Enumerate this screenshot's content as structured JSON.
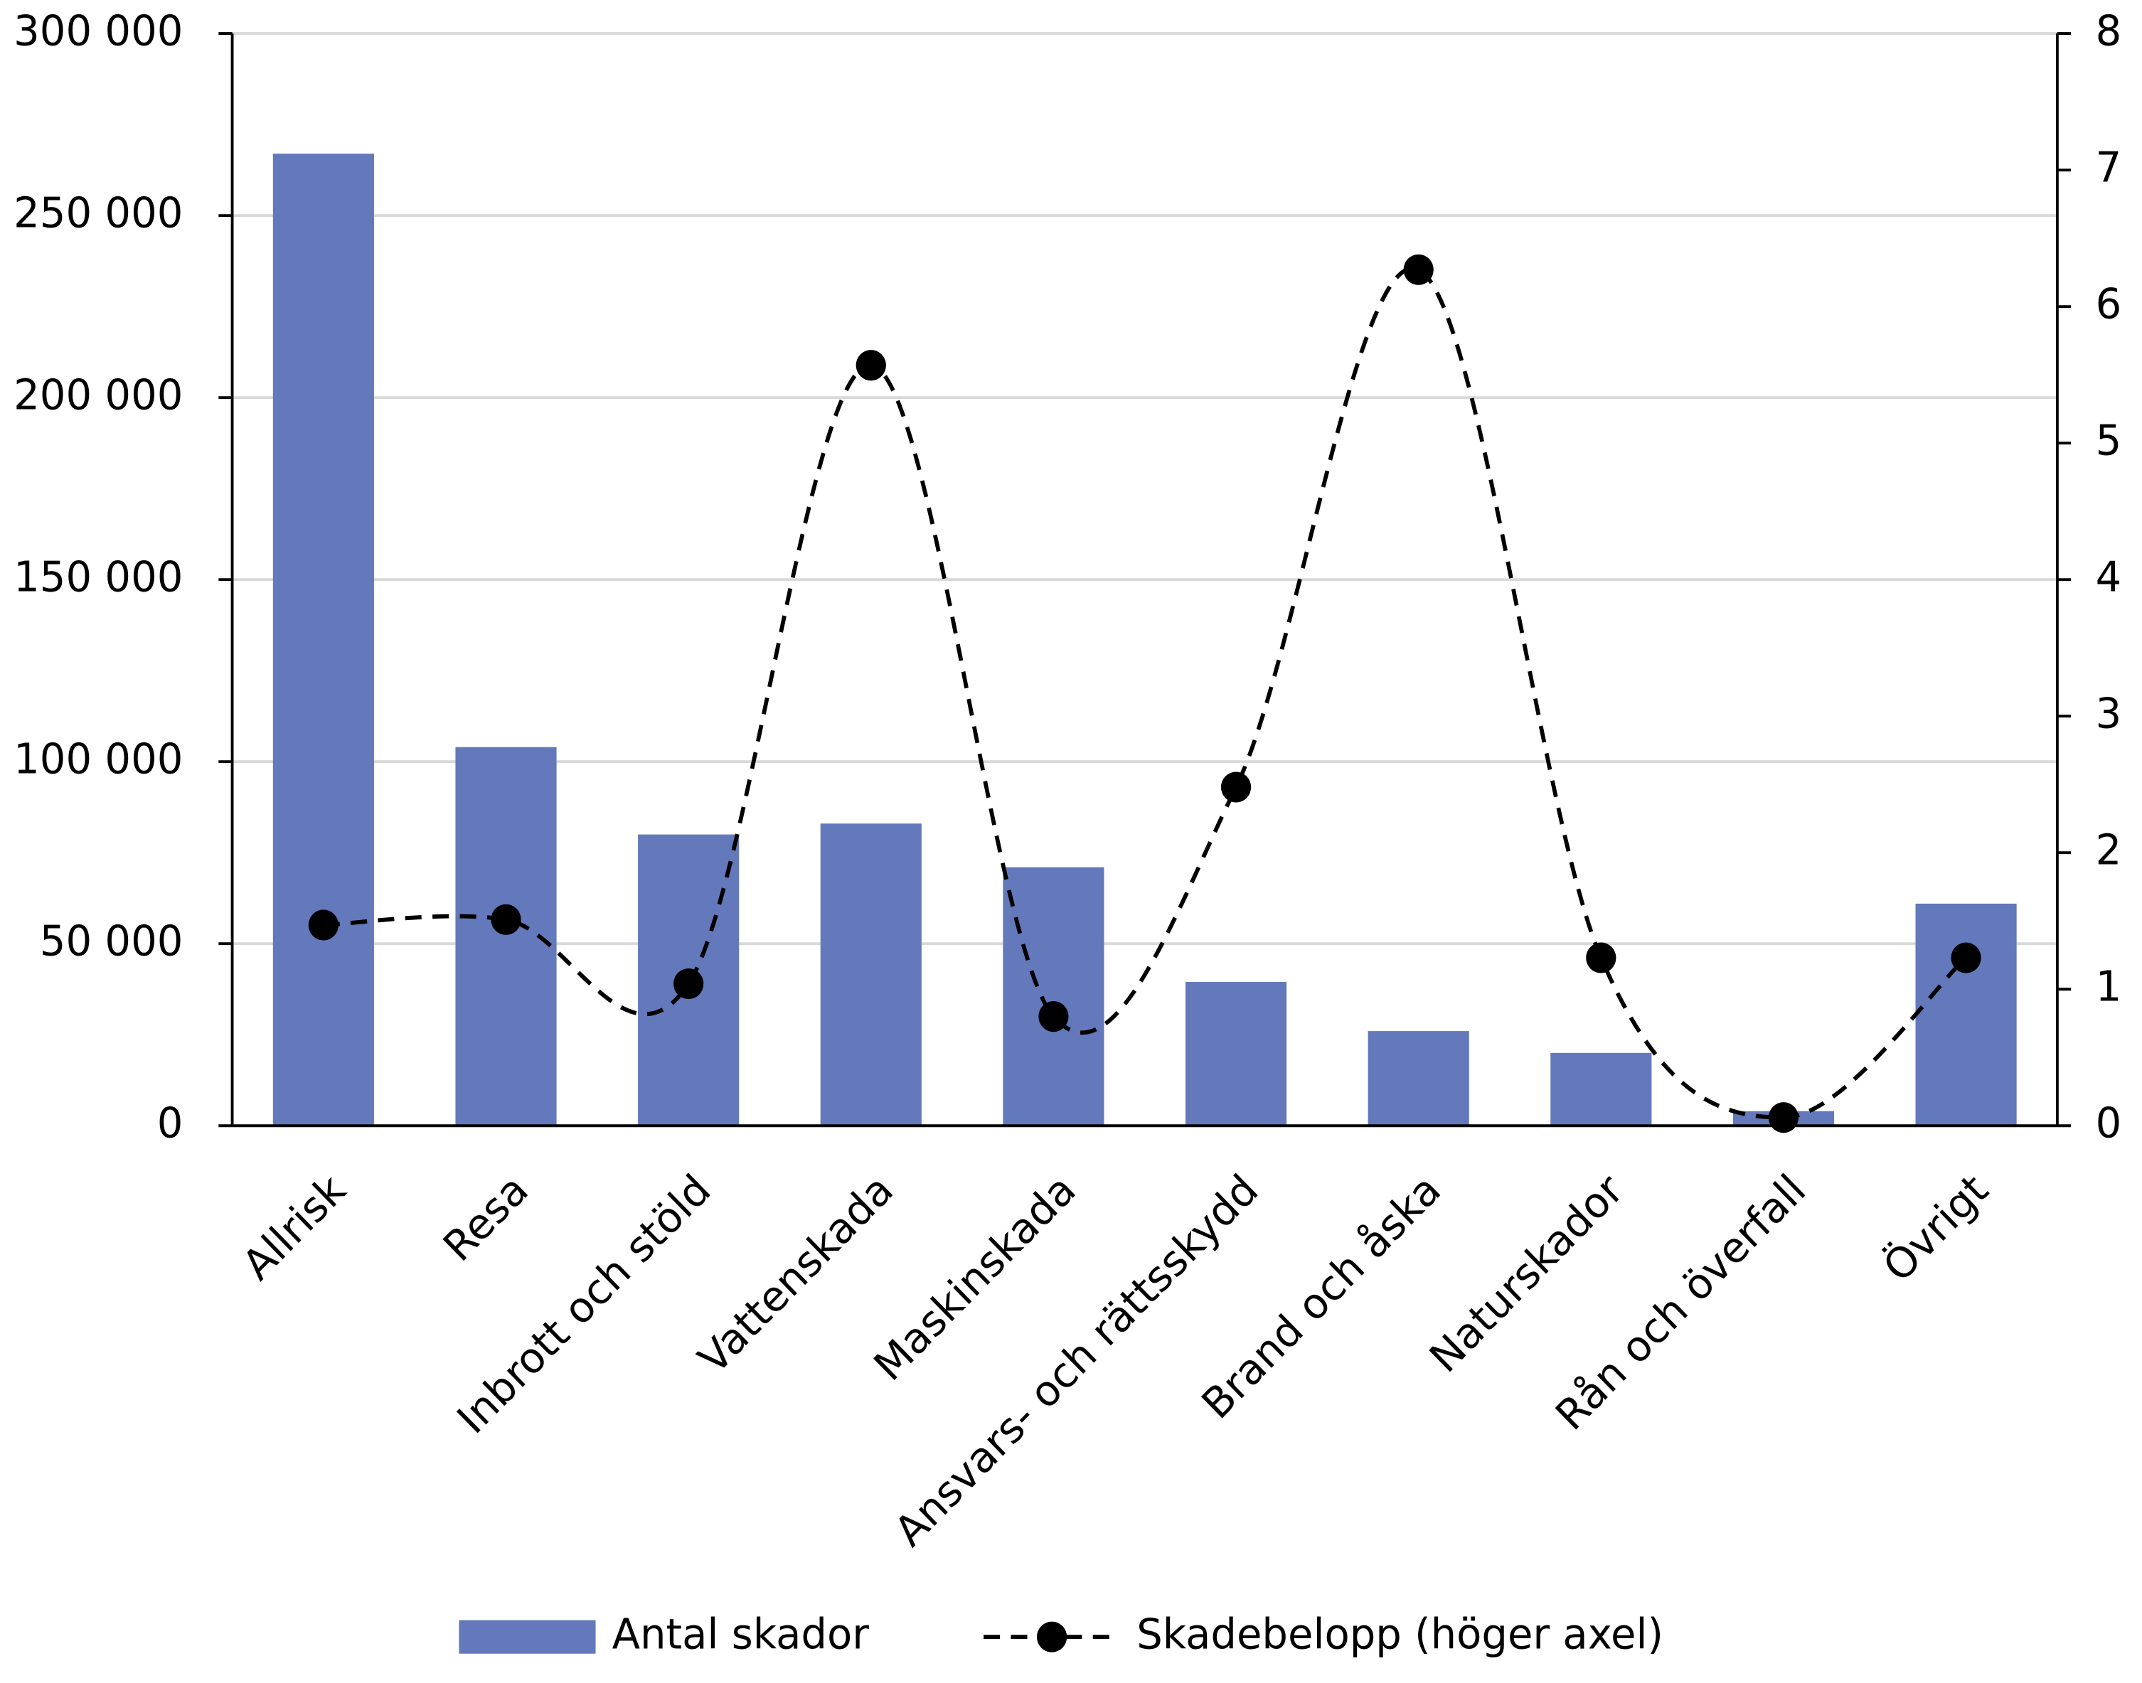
{
  "chart_data": {
    "type": "bar_line",
    "categories": [
      "Allrisk",
      "Resa",
      "Inbrott och stöld",
      "Vattenskada",
      "Maskinskada",
      "Ansvars- och rättsskydd",
      "Brand och åska",
      "Naturskador",
      "Rån och överfall",
      "Övrigt"
    ],
    "series": [
      {
        "name": "Antal skador",
        "type": "bar",
        "color": "#6479bb",
        "values": [
          267000,
          104000,
          80000,
          83000,
          71000,
          39500,
          26000,
          20000,
          4000,
          61000
        ]
      },
      {
        "name": "Skadebelopp (höger axel)",
        "type": "line",
        "axis": "y2",
        "color": "#000000",
        "values": [
          1.47,
          1.51,
          1.04,
          5.57,
          0.8,
          2.48,
          6.27,
          1.23,
          0.06,
          1.23
        ]
      }
    ],
    "ylim": [
      0,
      300000
    ],
    "yticks": [
      0,
      {
        "value": 50000,
        "label": "50 000"
      },
      {
        "value": 100000,
        "label": "100 000"
      },
      {
        "value": 150000,
        "label": "150 000"
      },
      {
        "value": 200000,
        "label": "200 000"
      },
      {
        "value": 250000,
        "label": "250 000"
      },
      {
        "value": 300000,
        "label": "300 000"
      }
    ],
    "y2lim": [
      0,
      8
    ],
    "y2ticks": [
      0,
      1,
      2,
      3,
      4,
      5,
      6,
      7,
      8
    ],
    "grid": true,
    "legend": "bottom"
  }
}
